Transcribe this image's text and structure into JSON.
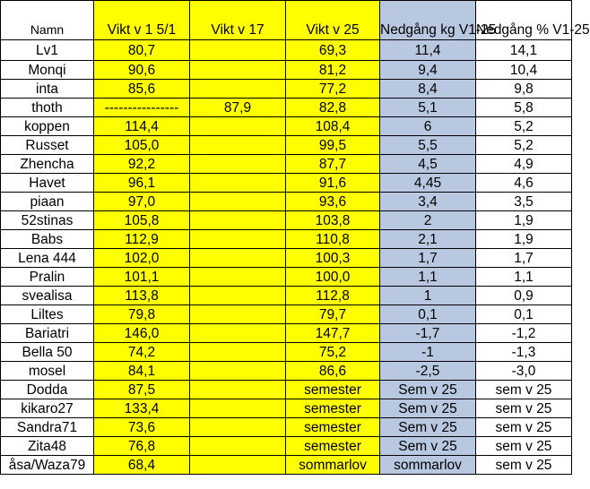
{
  "headers": [
    "Namn",
    "Vikt v 1 5/1",
    "Vikt v 17",
    "Vikt v 25",
    "Nedgång kg V1-25",
    "Nedgång % V1-25"
  ],
  "rows": [
    [
      "Lv1",
      "80,7",
      "",
      "69,3",
      "11,4",
      "14,1"
    ],
    [
      "Monqi",
      "90,6",
      "",
      "81,2",
      "9,4",
      "10,4"
    ],
    [
      "inta",
      "85,6",
      "",
      "77,2",
      "8,4",
      "9,8"
    ],
    [
      "thoth",
      "----------------",
      "87,9",
      "82,8",
      "5,1",
      "5,8"
    ],
    [
      "koppen",
      "114,4",
      "",
      "108,4",
      "6",
      "5,2"
    ],
    [
      "Russet",
      "105,0",
      "",
      "99,5",
      "5,5",
      "5,2"
    ],
    [
      "Zhencha",
      "92,2",
      "",
      "87,7",
      "4,5",
      "4,9"
    ],
    [
      "Havet",
      "96,1",
      "",
      "91,6",
      "4,45",
      "4,6"
    ],
    [
      "piaan",
      "97,0",
      "",
      "93,6",
      "3,4",
      "3,5"
    ],
    [
      "52stinas",
      "105,8",
      "",
      "103,8",
      "2",
      "1,9"
    ],
    [
      "Babs",
      "112,9",
      "",
      "110,8",
      "2,1",
      "1,9"
    ],
    [
      "Lena 444",
      "102,0",
      "",
      "100,3",
      "1,7",
      "1,7"
    ],
    [
      "Pralin",
      "101,1",
      "",
      "100,0",
      "1,1",
      "1,1"
    ],
    [
      "svealisa",
      "113,8",
      "",
      "112,8",
      "1",
      "0,9"
    ],
    [
      "Liltes",
      "79,8",
      "",
      "79,7",
      "0,1",
      "0,1"
    ],
    [
      "Bariatri",
      "146,0",
      "",
      "147,7",
      "-1,7",
      "-1,2"
    ],
    [
      "Bella 50",
      "74,2",
      "",
      "75,2",
      "-1",
      "-1,3"
    ],
    [
      "mosel",
      "84,1",
      "",
      "86,6",
      "-2,5",
      "-3,0"
    ],
    [
      "Dodda",
      "87,5",
      "",
      "semester",
      "Sem v 25",
      "sem v 25"
    ],
    [
      "kikaro27",
      "133,4",
      "",
      "semester",
      "Sem v 25",
      "sem v 25"
    ],
    [
      "Sandra71",
      "73,6",
      "",
      "semester",
      "Sem v 25",
      "sem v 25"
    ],
    [
      "Zita48",
      "76,8",
      "",
      "semester",
      "Sem v 25",
      "sem v 25"
    ],
    [
      "åsa/Waza79",
      "68,4",
      "",
      "sommarlov",
      "sommarlov",
      "sem v 25"
    ]
  ],
  "colors": {
    "yellow": "#ffff00",
    "blue": "#b7c8e0",
    "white": "#ffffff",
    "border": "#000000"
  }
}
